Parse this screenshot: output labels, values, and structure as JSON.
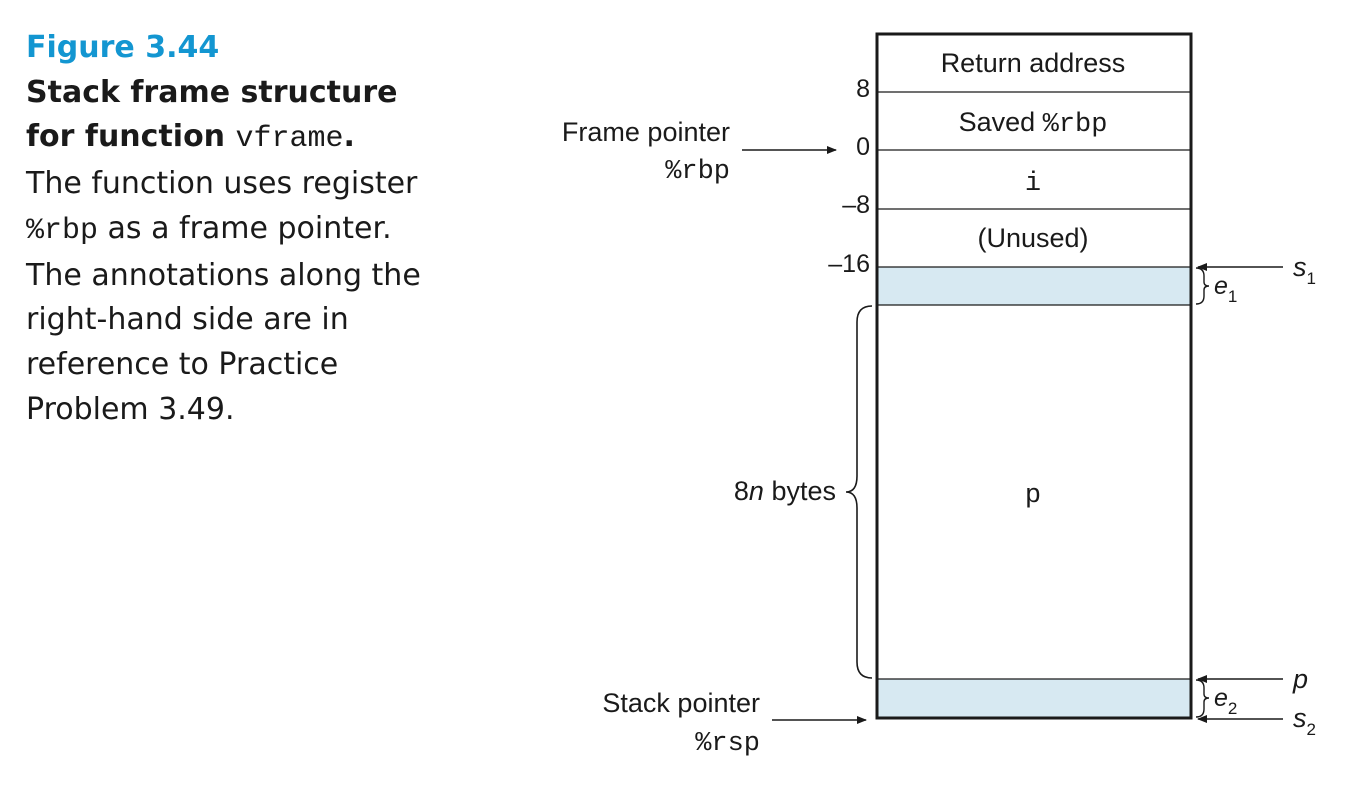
{
  "caption": {
    "figure_number": "Figure 3.44",
    "title_text": "Stack frame structure for function ",
    "title_code": "vframe",
    "title_end": ".",
    "body_1": "The function uses register ",
    "body_code": "%rbp",
    "body_2": " as a frame pointer. The annotations along the right-hand side are in reference to Practice Problem 3.49."
  },
  "stack": {
    "cells": [
      {
        "label": "Return address",
        "code": ""
      },
      {
        "label": "Saved ",
        "code": "%rbp"
      },
      {
        "label": "",
        "code": "i"
      },
      {
        "label": "(Unused)",
        "code": ""
      },
      {
        "label": "",
        "code": ""
      },
      {
        "label": "",
        "code": "p"
      },
      {
        "label": "",
        "code": ""
      }
    ],
    "offsets": [
      "8",
      "0",
      "–8",
      "–16"
    ],
    "shade_color": "#d7e9f2"
  },
  "pointers": {
    "frame_label": "Frame pointer",
    "frame_reg": "%rbp",
    "stack_label": "Stack pointer",
    "stack_reg": "%rsp"
  },
  "brace": {
    "size_num": "8",
    "size_var": "n",
    "size_unit": " bytes"
  },
  "annotations": {
    "s1_base": "s",
    "s1_sub": "1",
    "e1_base": "e",
    "e1_sub": "1",
    "p_label": "p",
    "e2_base": "e",
    "e2_sub": "2",
    "s2_base": "s",
    "s2_sub": "2"
  }
}
